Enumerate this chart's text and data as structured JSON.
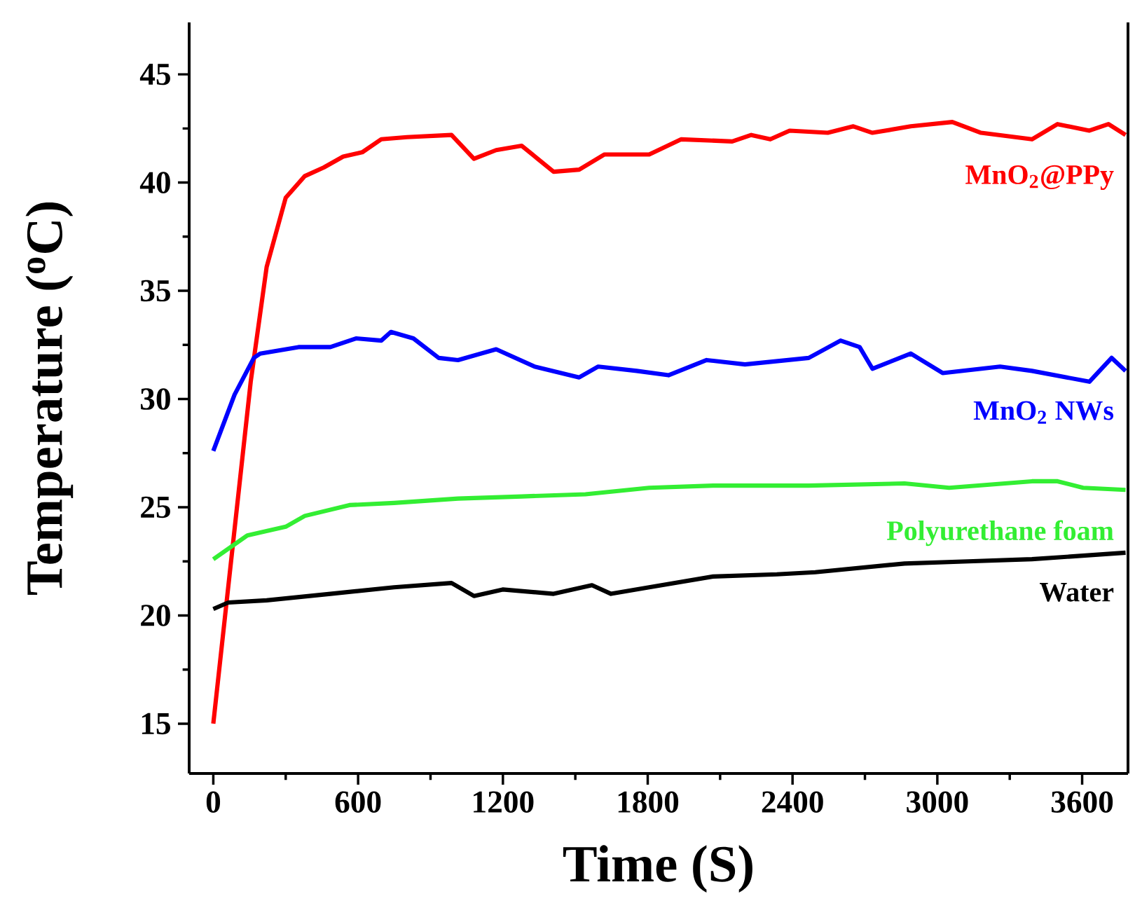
{
  "chart_data": {
    "type": "line",
    "xlabel": "Time (S)",
    "ylabel": "Temperature ($^{o}$C)",
    "xlim": [
      -100,
      3790
    ],
    "ylim": [
      12.7,
      47.4
    ],
    "xticks": [
      0,
      {
        "value": 300,
        "label": null
      },
      600,
      {
        "value": 900,
        "label": null
      },
      1200,
      {
        "value": 1500,
        "label": null
      },
      1800,
      {
        "value": 2100,
        "label": null
      },
      2400,
      {
        "value": 2700,
        "label": null
      },
      3000,
      {
        "value": 3300,
        "label": null
      },
      3600
    ],
    "yticks": [
      15,
      {
        "value": 17.5,
        "label": null
      },
      20,
      {
        "value": 22.5,
        "label": null
      },
      25,
      {
        "value": 27.5,
        "label": null
      },
      30,
      {
        "value": 32.5,
        "label": null
      },
      35,
      {
        "value": 37.5,
        "label": null
      },
      40,
      {
        "value": 42.5,
        "label": null
      },
      45
    ],
    "grid": false,
    "legend": false,
    "marker": "none",
    "line_style": "solid",
    "series": [
      {
        "name": "MnO$_{2}$@PPy",
        "color": "#ff0000",
        "x": [
          0,
          49,
          155,
          221,
          300,
          379,
          458,
          538,
          617,
          696,
          802,
          987,
          1080,
          1172,
          1278,
          1410,
          1516,
          1621,
          1806,
          1939,
          2150,
          2229,
          2308,
          2388,
          2546,
          2652,
          2731,
          2890,
          3062,
          3181,
          3392,
          3498,
          3630,
          3709,
          3780
        ],
        "values": [
          15,
          20,
          30.8,
          36.1,
          39.3,
          40.3,
          40.7,
          41.2,
          41.4,
          42,
          42.1,
          42.2,
          41.1,
          41.5,
          41.7,
          40.5,
          40.6,
          41.3,
          41.3,
          42,
          41.9,
          42.2,
          42,
          42.4,
          42.3,
          42.6,
          42.3,
          42.6,
          42.8,
          42.3,
          42,
          42.7,
          42.4,
          42.7,
          42.2
        ]
      },
      {
        "name": "MnO$_{2}$ NWs",
        "color": "#0000ff",
        "x": [
          0,
          88,
          168,
          194,
          353,
          485,
          591,
          696,
          736,
          829,
          934,
          1014,
          1172,
          1331,
          1516,
          1595,
          1754,
          1886,
          2044,
          2203,
          2467,
          2599,
          2678,
          2731,
          2890,
          3022,
          3260,
          3392,
          3630,
          3722,
          3780
        ],
        "values": [
          27.6,
          30.2,
          31.9,
          32.1,
          32.4,
          32.4,
          32.8,
          32.7,
          33.1,
          32.8,
          31.9,
          31.8,
          32.3,
          31.5,
          31,
          31.5,
          31.3,
          31.1,
          31.8,
          31.6,
          31.9,
          32.7,
          32.4,
          31.4,
          32.1,
          31.2,
          31.5,
          31.3,
          30.8,
          31.9,
          31.3
        ]
      },
      {
        "name": "Polyurethane foam",
        "color": "#33ee33",
        "x": [
          0,
          141,
          300,
          379,
          564,
          749,
          1014,
          1278,
          1542,
          1806,
          2071,
          2335,
          2467,
          2864,
          3049,
          3392,
          3498,
          3604,
          3780
        ],
        "values": [
          22.6,
          23.7,
          24.1,
          24.6,
          25.1,
          25.2,
          25.4,
          25.5,
          25.6,
          25.9,
          26,
          26,
          26,
          26.1,
          25.9,
          26.2,
          26.2,
          25.9,
          25.8
        ]
      },
      {
        "name": "Water",
        "color": "#000000",
        "x": [
          0,
          62,
          221,
          485,
          749,
          987,
          1080,
          1199,
          1410,
          1569,
          1648,
          1806,
          2071,
          2335,
          2494,
          2864,
          3128,
          3392,
          3780
        ],
        "values": [
          20.3,
          20.6,
          20.7,
          21,
          21.3,
          21.5,
          20.9,
          21.2,
          21,
          21.4,
          21,
          21.3,
          21.8,
          21.9,
          22,
          22.4,
          22.5,
          22.6,
          22.9
        ]
      }
    ]
  }
}
